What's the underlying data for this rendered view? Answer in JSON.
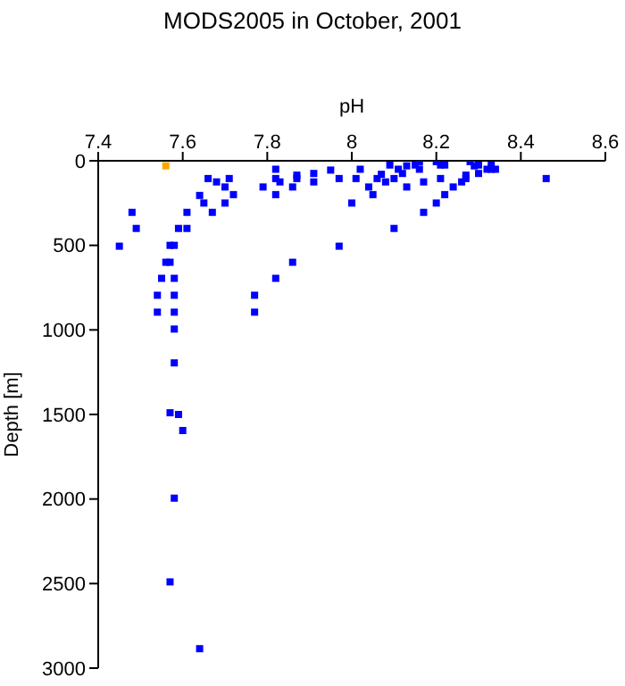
{
  "chart_data": {
    "type": "scatter",
    "title": "MODS2005 in October, 2001",
    "xlabel": "pH",
    "ylabel": "Depth [m]",
    "xlim": [
      7.4,
      8.6
    ],
    "xticks": [
      7.4,
      7.6,
      7.8,
      8,
      8.2,
      8.4,
      8.6
    ],
    "ylim": [
      3000,
      0
    ],
    "yticks": [
      0,
      500,
      1000,
      1500,
      2000,
      2500,
      3000
    ],
    "marker": "square",
    "series": [
      {
        "color": "#0000ff",
        "x": [
          8.46,
          7.48,
          7.49,
          7.45,
          7.66,
          7.71,
          7.64,
          7.65,
          7.68,
          7.7,
          7.72,
          7.67,
          7.7,
          7.61,
          7.59,
          7.61,
          7.57,
          7.58,
          7.56,
          7.57,
          7.55,
          7.58,
          7.54,
          7.58,
          7.54,
          7.58,
          7.58,
          7.58,
          7.57,
          7.59,
          7.6,
          7.58,
          7.57,
          7.64,
          7.79,
          7.77,
          7.77,
          7.82,
          7.86,
          7.82,
          7.82,
          7.83,
          7.82,
          7.86,
          7.87,
          7.87,
          7.91,
          7.91,
          7.95,
          7.97,
          7.97,
          8.0,
          8.01,
          8.02,
          8.04,
          8.05,
          8.06,
          8.07,
          8.08,
          8.09,
          8.1,
          8.1,
          8.11,
          8.12,
          8.13,
          8.13,
          8.15,
          8.16,
          8.16,
          8.17,
          8.17,
          8.2,
          8.2,
          8.21,
          8.22,
          8.21,
          8.22,
          8.24,
          8.26,
          8.27,
          8.27,
          8.28,
          8.29,
          8.3,
          8.3,
          8.32,
          8.33,
          8.34,
          8.33
        ],
        "values": [
          105,
          305,
          400,
          505,
          105,
          105,
          205,
          250,
          125,
          155,
          200,
          305,
          250,
          305,
          400,
          400,
          500,
          500,
          600,
          600,
          695,
          695,
          795,
          795,
          895,
          895,
          995,
          1195,
          1490,
          1500,
          1595,
          1995,
          2490,
          2885,
          155,
          795,
          895,
          695,
          600,
          50,
          105,
          125,
          200,
          155,
          105,
          85,
          75,
          125,
          55,
          105,
          505,
          250,
          105,
          50,
          155,
          200,
          105,
          80,
          125,
          25,
          105,
          400,
          50,
          75,
          30,
          155,
          25,
          50,
          5,
          125,
          305,
          250,
          5,
          25,
          25,
          105,
          200,
          155,
          125,
          85,
          105,
          5,
          30,
          25,
          75,
          50,
          25,
          50,
          50
        ]
      },
      {
        "color": "#ffa500",
        "x": [
          7.56
        ],
        "values": [
          30
        ]
      }
    ]
  }
}
